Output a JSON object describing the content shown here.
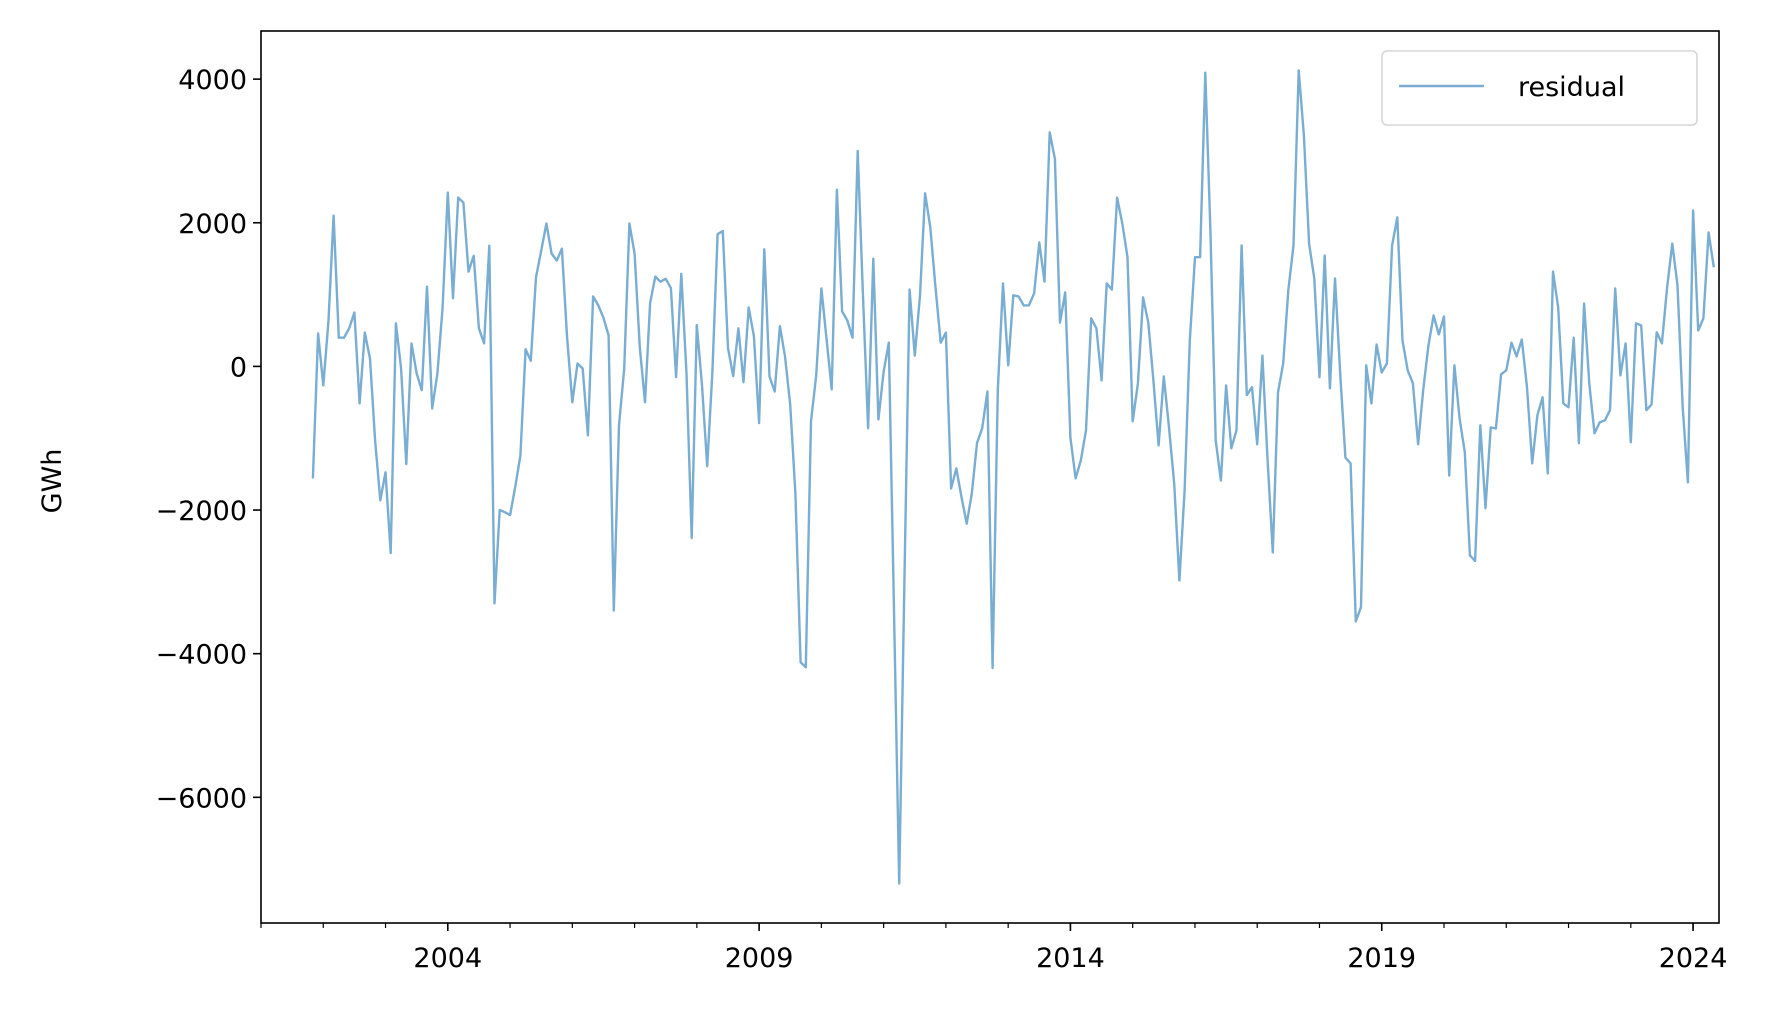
{
  "chart_data": {
    "type": "line",
    "title": "",
    "xlabel": "",
    "ylabel": "GWh",
    "ylim": [
      -7750,
      4670
    ],
    "xlim": [
      "2001-01",
      "2024-06"
    ],
    "yticks": [
      -6000,
      -4000,
      -2000,
      0,
      2000,
      4000
    ],
    "ytick_labels": [
      "−6000",
      "−4000",
      "−2000",
      "0",
      "2000",
      "4000"
    ],
    "xticks": [
      "2004",
      "2009",
      "2014",
      "2019",
      "2024"
    ],
    "x_minor_ticks": "yearly",
    "grid": false,
    "legend": {
      "placement": "top-right",
      "entries": [
        "residual"
      ]
    },
    "series": [
      {
        "name": "residual",
        "color": "#79add2",
        "x": [
          "2001-11",
          "2001-12",
          "2002-01",
          "2002-02",
          "2002-03",
          "2002-04",
          "2002-05",
          "2002-06",
          "2002-07",
          "2002-08",
          "2002-09",
          "2002-10",
          "2002-11",
          "2002-12",
          "2003-01",
          "2003-02",
          "2003-03",
          "2003-04",
          "2003-05",
          "2003-06",
          "2003-07",
          "2003-08",
          "2003-09",
          "2003-10",
          "2003-11",
          "2003-12",
          "2004-01",
          "2004-02",
          "2004-03",
          "2004-04",
          "2004-05",
          "2004-06",
          "2004-07",
          "2004-08",
          "2004-09",
          "2004-10",
          "2004-11",
          "2004-12",
          "2005-01",
          "2005-02",
          "2005-03",
          "2005-04",
          "2005-05",
          "2005-06",
          "2005-07",
          "2005-08",
          "2005-09",
          "2005-10",
          "2005-11",
          "2005-12",
          "2006-01",
          "2006-02",
          "2006-03",
          "2006-04",
          "2006-05",
          "2006-06",
          "2006-07",
          "2006-08",
          "2006-09",
          "2006-10",
          "2006-11",
          "2006-12",
          "2007-01",
          "2007-02",
          "2007-03",
          "2007-04",
          "2007-05",
          "2007-06",
          "2007-07",
          "2007-08",
          "2007-09",
          "2007-10",
          "2007-11",
          "2007-12",
          "2008-01",
          "2008-02",
          "2008-03",
          "2008-04",
          "2008-05",
          "2008-06",
          "2008-07",
          "2008-08",
          "2008-09",
          "2008-10",
          "2008-11",
          "2008-12",
          "2009-01",
          "2009-02",
          "2009-03",
          "2009-04",
          "2009-05",
          "2009-06",
          "2009-07",
          "2009-08",
          "2009-09",
          "2009-10",
          "2009-11",
          "2009-12",
          "2010-01",
          "2010-02",
          "2010-03",
          "2010-04",
          "2010-05",
          "2010-06",
          "2010-07",
          "2010-08",
          "2010-09",
          "2010-10",
          "2010-11",
          "2010-12",
          "2011-01",
          "2011-02",
          "2011-03",
          "2011-04",
          "2011-05",
          "2011-06",
          "2011-07",
          "2011-08",
          "2011-09",
          "2011-10",
          "2011-11",
          "2011-12",
          "2012-01",
          "2012-02",
          "2012-03",
          "2012-04",
          "2012-05",
          "2012-06",
          "2012-07",
          "2012-08",
          "2012-09",
          "2012-10",
          "2012-11",
          "2012-12",
          "2013-01",
          "2013-02",
          "2013-03",
          "2013-04",
          "2013-05",
          "2013-06",
          "2013-07",
          "2013-08",
          "2013-09",
          "2013-10",
          "2013-11",
          "2013-12",
          "2014-01",
          "2014-02",
          "2014-03",
          "2014-04",
          "2014-05",
          "2014-06",
          "2014-07",
          "2014-08",
          "2014-09",
          "2014-10",
          "2014-11",
          "2014-12",
          "2015-01",
          "2015-02",
          "2015-03",
          "2015-04",
          "2015-05",
          "2015-06",
          "2015-07",
          "2015-08",
          "2015-09",
          "2015-10",
          "2015-11",
          "2015-12",
          "2016-01",
          "2016-02",
          "2016-03",
          "2016-04",
          "2016-05",
          "2016-06",
          "2016-07",
          "2016-08",
          "2016-09",
          "2016-10",
          "2016-11",
          "2016-12",
          "2017-01",
          "2017-02",
          "2017-03",
          "2017-04",
          "2017-05",
          "2017-06",
          "2017-07",
          "2017-08",
          "2017-09",
          "2017-10",
          "2017-11",
          "2017-12",
          "2018-01",
          "2018-02",
          "2018-03",
          "2018-04",
          "2018-05",
          "2018-06",
          "2018-07",
          "2018-08",
          "2018-09",
          "2018-10",
          "2018-11",
          "2018-12",
          "2019-01",
          "2019-02",
          "2019-03",
          "2019-04",
          "2019-05",
          "2019-06",
          "2019-07",
          "2019-08",
          "2019-09",
          "2019-10",
          "2019-11",
          "2019-12",
          "2020-01",
          "2020-02",
          "2020-03",
          "2020-04",
          "2020-05",
          "2020-06",
          "2020-07",
          "2020-08",
          "2020-09",
          "2020-10",
          "2020-11",
          "2020-12",
          "2021-01",
          "2021-02",
          "2021-03",
          "2021-04",
          "2021-05",
          "2021-06",
          "2021-07",
          "2021-08",
          "2021-09",
          "2021-10",
          "2021-11",
          "2021-12",
          "2022-01",
          "2022-02",
          "2022-03",
          "2022-04",
          "2022-05",
          "2022-06",
          "2022-07",
          "2022-08",
          "2022-09",
          "2022-10",
          "2022-11",
          "2022-12",
          "2023-01",
          "2023-02",
          "2023-03",
          "2023-04",
          "2023-05",
          "2023-06",
          "2023-07",
          "2023-08",
          "2023-09",
          "2023-10",
          "2023-11",
          "2023-12",
          "2024-01",
          "2024-02",
          "2024-03",
          "2024-04",
          "2024-05"
        ],
        "values": [
          -1560,
          460,
          -265,
          640,
          2100,
          400,
          400,
          530,
          750,
          -515,
          470,
          110,
          -1030,
          -1865,
          -1475,
          -2600,
          600,
          -30,
          -1360,
          320,
          -100,
          -330,
          1110,
          -585,
          -100,
          820,
          2420,
          950,
          2350,
          2280,
          1320,
          1540,
          530,
          320,
          1680,
          -3300,
          -2000,
          -2030,
          -2070,
          -1680,
          -1240,
          240,
          80,
          1240,
          1610,
          1990,
          1570,
          1475,
          1640,
          400,
          -500,
          40,
          -30,
          -960,
          975,
          850,
          680,
          430,
          -3400,
          -820,
          -30,
          1990,
          1570,
          265,
          -500,
          880,
          1250,
          1180,
          1220,
          1090,
          -150,
          1290,
          -100,
          -2390,
          575,
          -260,
          -1390,
          -75,
          1840,
          1885,
          255,
          -135,
          530,
          -220,
          820,
          420,
          -790,
          1630,
          -140,
          -350,
          560,
          140,
          -530,
          -1770,
          -4120,
          -4190,
          -765,
          -125,
          1085,
          375,
          -320,
          2460,
          765,
          640,
          400,
          3000,
          1015,
          -860,
          1500,
          -740,
          -75,
          330,
          -3400,
          -7200,
          -3000,
          1070,
          150,
          990,
          2410,
          1935,
          1100,
          330,
          470,
          -1700,
          -1420,
          -1820,
          -2190,
          -1770,
          -1070,
          -860,
          -350,
          -4200,
          -330,
          1155,
          15,
          990,
          975,
          850,
          850,
          1015,
          1725,
          1180,
          3260,
          2890,
          610,
          1030,
          -990,
          -1560,
          -1310,
          -890,
          670,
          530,
          -195,
          1155,
          1070,
          2350,
          1990,
          1520,
          -765,
          -240,
          960,
          610,
          -195,
          -1100,
          -140,
          -850,
          -1630,
          -2980,
          -1730,
          360,
          1520,
          1520,
          4090,
          1850,
          -1030,
          -1590,
          -265,
          -1140,
          -890,
          1685,
          -400,
          -290,
          -1085,
          150,
          -1310,
          -2590,
          -360,
          40,
          1060,
          1685,
          4120,
          3215,
          1710,
          1225,
          -150,
          1545,
          -305,
          1225,
          -100,
          -1270,
          -1350,
          -3550,
          -3350,
          15,
          -515,
          305,
          -85,
          40,
          1685,
          2075,
          360,
          -55,
          -235,
          -1085,
          -330,
          290,
          710,
          445,
          695,
          -1520,
          15,
          -725,
          -1195,
          -2630,
          -2710,
          -820,
          -1975,
          -850,
          -865,
          -110,
          -55,
          330,
          140,
          375,
          -290,
          -1350,
          -680,
          -430,
          -1490,
          1320,
          820,
          -515,
          -570,
          400,
          -1070,
          875,
          -240,
          -930,
          -780,
          -750,
          -610,
          1085,
          -125,
          320,
          -1055,
          600,
          570,
          -610,
          -530,
          475,
          320,
          1100,
          1710,
          1130,
          -570,
          -1615,
          2170,
          500,
          670,
          1865,
          1380
        ]
      }
    ]
  }
}
